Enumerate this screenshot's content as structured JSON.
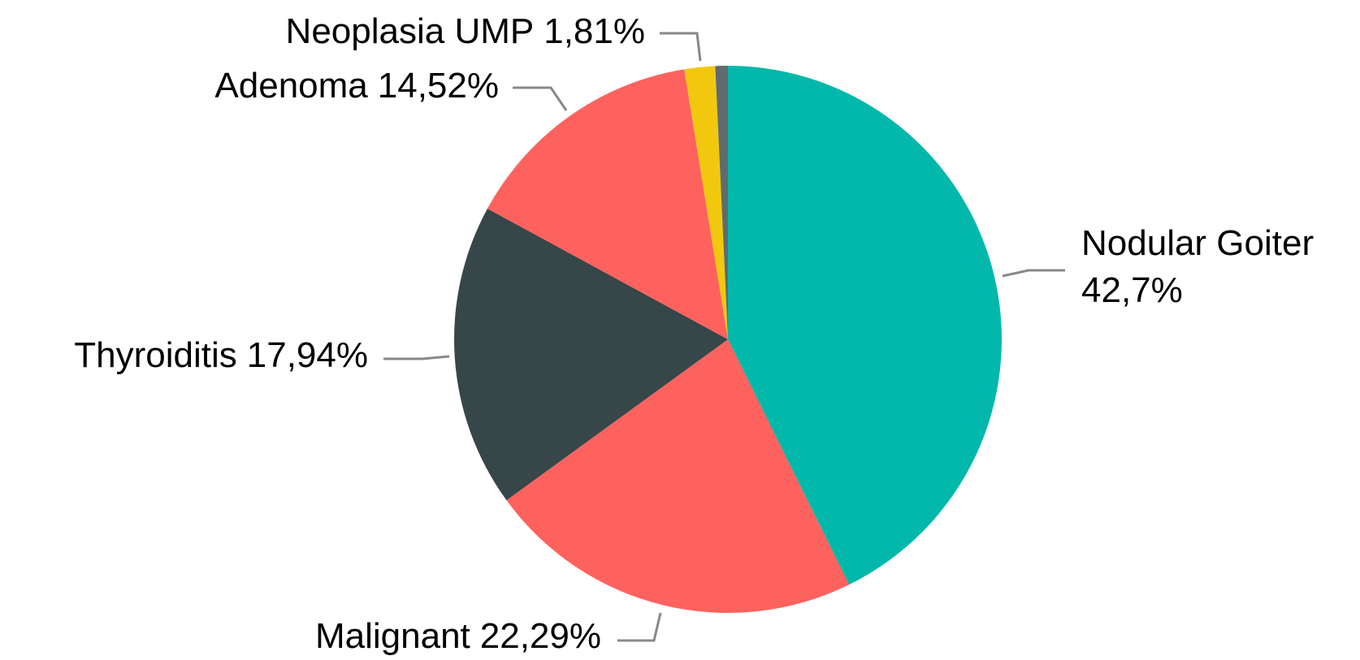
{
  "chart_data": {
    "type": "pie",
    "categories": [
      "Nodular Goiter",
      "Malignant",
      "Thyroiditis",
      "Adenoma",
      "Neoplasia UMP",
      null
    ],
    "values": [
      42.7,
      22.29,
      17.94,
      14.52,
      1.81,
      0.74
    ],
    "value_labels": [
      "42,7%",
      "22,29%",
      "17,94%",
      "14,52%",
      "1,81%",
      null
    ],
    "colors": [
      "#01b8aa",
      "#fd625e",
      "#374649",
      "#fd625e",
      "#f2c80f",
      "#5f6b6d"
    ]
  }
}
